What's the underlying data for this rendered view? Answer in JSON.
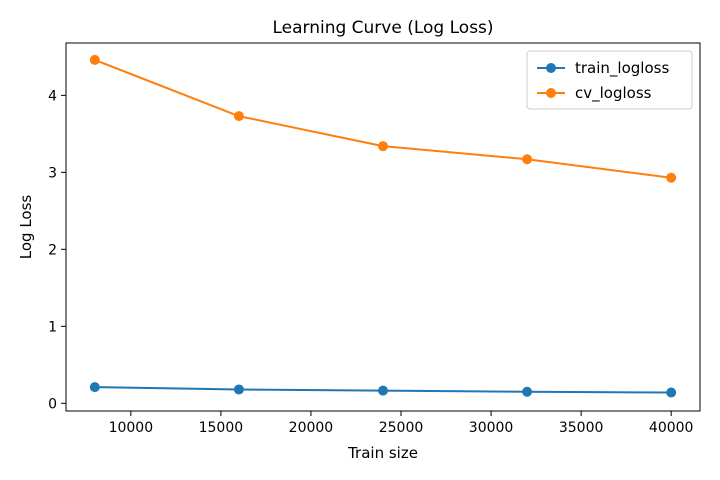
{
  "chart_data": {
    "type": "line",
    "title": "Learning Curve (Log Loss)",
    "xlabel": "Train size",
    "ylabel": "Log Loss",
    "x": [
      8000,
      16000,
      24000,
      32000,
      40000
    ],
    "series": [
      {
        "name": "train_logloss",
        "color": "#1f77b4",
        "values": [
          0.21,
          0.18,
          0.165,
          0.15,
          0.14
        ]
      },
      {
        "name": "cv_logloss",
        "color": "#ff7f0e",
        "values": [
          4.46,
          3.73,
          3.34,
          3.17,
          2.93
        ]
      }
    ],
    "xlim": [
      6400,
      41600
    ],
    "ylim": [
      -0.1,
      4.68
    ],
    "xticks": [
      10000,
      15000,
      20000,
      25000,
      30000,
      35000,
      40000
    ],
    "yticks": [
      0,
      1,
      2,
      3,
      4
    ],
    "xtick_labels": [
      "10000",
      "15000",
      "20000",
      "25000",
      "30000",
      "35000",
      "40000"
    ],
    "ytick_labels": [
      "0",
      "1",
      "2",
      "3",
      "4"
    ],
    "grid": false,
    "legend_position": "top-right"
  }
}
